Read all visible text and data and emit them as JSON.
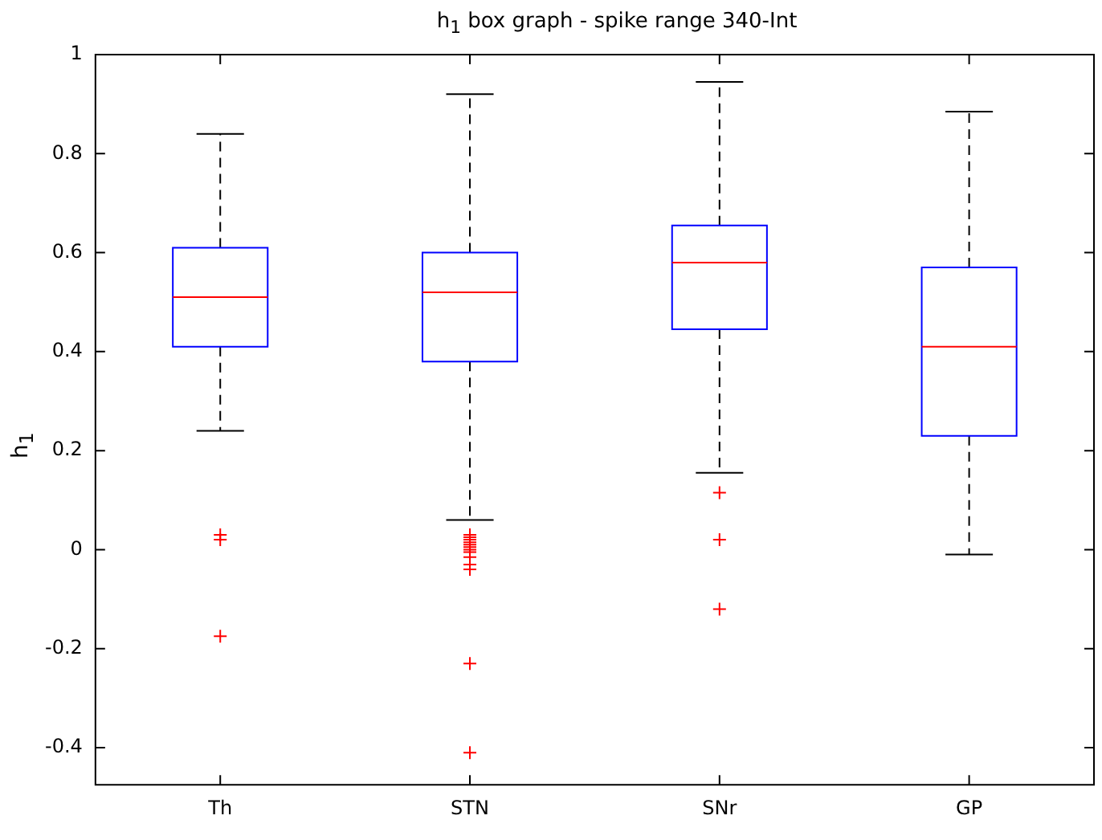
{
  "chart_data": {
    "type": "box",
    "title": "h$_{1}$ box graph - spike range 340-Int",
    "ylabel": "h$_{1}$",
    "categories": [
      "Th",
      "STN",
      "SNr",
      "GP"
    ],
    "boxes": [
      {
        "low": 0.24,
        "q1": 0.41,
        "median": 0.51,
        "q3": 0.61,
        "high": 0.84,
        "outliers": [
          0.03,
          0.02,
          -0.175
        ]
      },
      {
        "low": 0.06,
        "q1": 0.38,
        "median": 0.52,
        "q3": 0.6,
        "high": 0.92,
        "outliers": [
          0.03,
          0.025,
          0.02,
          0.015,
          0.01,
          0.005,
          0,
          -0.005,
          -0.015,
          -0.03,
          -0.04,
          -0.23,
          -0.41
        ]
      },
      {
        "low": 0.155,
        "q1": 0.445,
        "median": 0.58,
        "q3": 0.655,
        "high": 0.945,
        "outliers": [
          0.115,
          0.02,
          -0.12
        ]
      },
      {
        "low": -0.01,
        "q1": 0.23,
        "median": 0.41,
        "q3": 0.57,
        "high": 0.885
      }
    ],
    "color": "#0000ff",
    "marker": "cross",
    "ylim": [
      -0.475,
      1
    ],
    "yticks": [
      -0.4,
      -0.2,
      0,
      0.2,
      0.4,
      0.6,
      0.8,
      1
    ],
    "grid": false,
    "legend": false
  }
}
